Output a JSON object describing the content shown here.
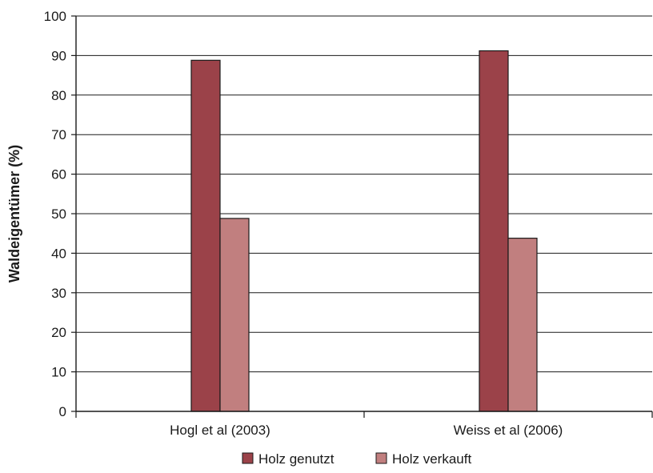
{
  "chart_data": {
    "type": "bar",
    "categories": [
      "Hogl et al (2003)",
      "Weiss et al (2006)"
    ],
    "series": [
      {
        "name": "Holz genutzt",
        "values": [
          88.8,
          91.2
        ],
        "color": "#9b4249"
      },
      {
        "name": "Holz verkauft",
        "values": [
          48.8,
          43.8
        ],
        "color": "#c17f7f"
      }
    ],
    "ylabel": "Waldeigentümer (%)",
    "xlabel": "",
    "ylim": [
      0,
      100
    ],
    "yticks": [
      0,
      10,
      20,
      30,
      40,
      50,
      60,
      70,
      80,
      90,
      100
    ],
    "grid": true,
    "legend_position": "bottom"
  }
}
